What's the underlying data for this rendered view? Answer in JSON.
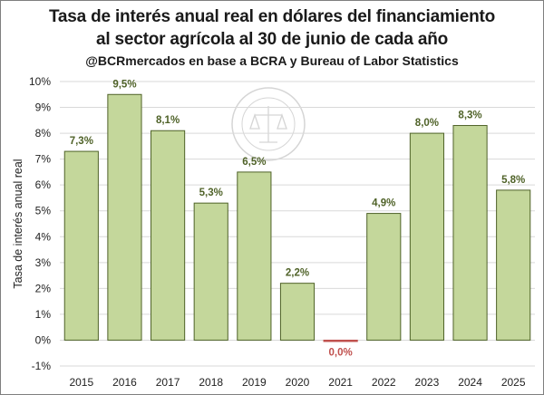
{
  "chart_data": {
    "type": "bar",
    "title_line1": "Tasa de interés anual real en dólares del financiamiento",
    "title_line2": "al sector agrícola al 30 de junio de cada año",
    "subtitle": "@BCRmercados en base a BCRA y Bureau of Labor Statistics",
    "ylabel": "Tasa de interés anual real",
    "xlabel": "",
    "categories": [
      "2015",
      "2016",
      "2017",
      "2018",
      "2019",
      "2020",
      "2021",
      "2022",
      "2023",
      "2024",
      "2025"
    ],
    "values": [
      7.3,
      9.5,
      8.1,
      5.3,
      6.5,
      2.2,
      -0.04,
      4.9,
      8.0,
      8.3,
      5.8
    ],
    "data_labels": [
      "7,3%",
      "9,5%",
      "8,1%",
      "5,3%",
      "6,5%",
      "2,2%",
      "0,0%",
      "4,9%",
      "8,0%",
      "8,3%",
      "5,8%"
    ],
    "ylim": [
      -1,
      10
    ],
    "yticks": [
      {
        "value": 10,
        "label": "10%"
      },
      {
        "value": 9,
        "label": "9%"
      },
      {
        "value": 8,
        "label": "8%"
      },
      {
        "value": 7,
        "label": "7%"
      },
      {
        "value": 6,
        "label": "6%"
      },
      {
        "value": 5,
        "label": "5%"
      },
      {
        "value": 4,
        "label": "4%"
      },
      {
        "value": 3,
        "label": "3%"
      },
      {
        "value": 2,
        "label": "2%"
      },
      {
        "value": 1,
        "label": "1%"
      },
      {
        "value": 0,
        "label": "0%"
      },
      {
        "value": -1,
        "label": "-1%"
      }
    ],
    "grid": true,
    "legend": "none",
    "colors": {
      "bar_fill": "#c4d79b",
      "bar_stroke": "#4f6228",
      "label_positive": "#4f6228",
      "label_negative": "#c0504d",
      "negative_bar": "#c0504d",
      "grid": "#d9d9d9"
    },
    "watermark": "BOLSA DE COMERCIO DE ROSARIO"
  }
}
